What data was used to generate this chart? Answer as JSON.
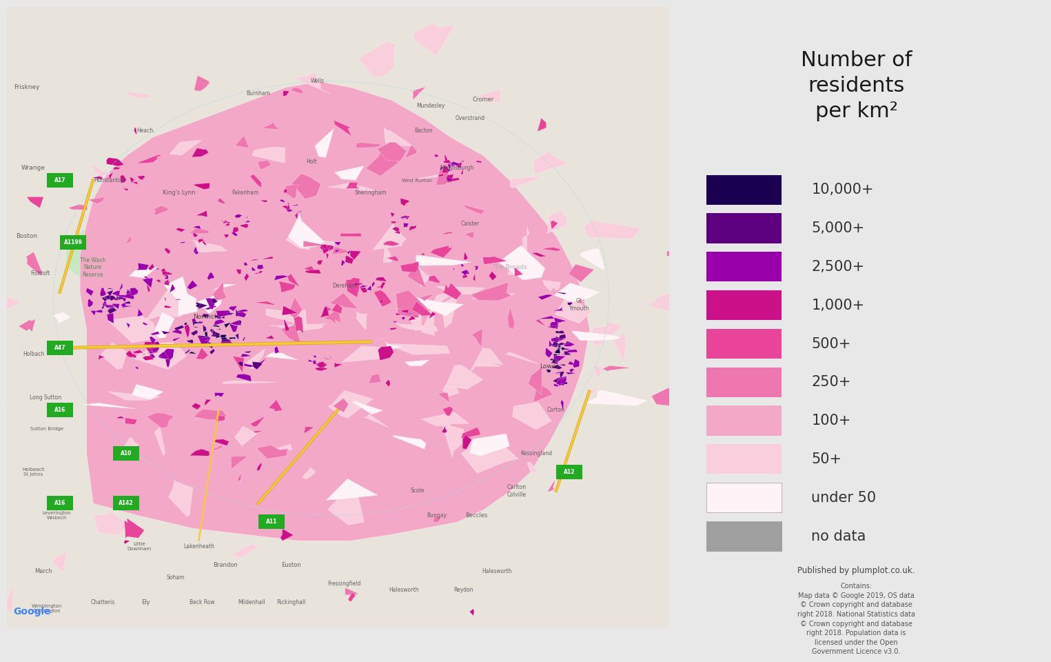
{
  "title": "Number of\nresidents\nper km²",
  "legend_entries": [
    {
      "label": "10,000+",
      "color": "#1a0050"
    },
    {
      "label": "5,000+",
      "color": "#5c0080"
    },
    {
      "label": "2,500+",
      "color": "#9900aa"
    },
    {
      "label": "1,000+",
      "color": "#cc1188"
    },
    {
      "label": "500+",
      "color": "#e84499"
    },
    {
      "label": "250+",
      "color": "#ee77b0"
    },
    {
      "label": "100+",
      "color": "#f4a8c8"
    },
    {
      "label": "50+",
      "color": "#f9cedd"
    },
    {
      "label": "under 50",
      "color": "#fef4f7"
    },
    {
      "label": "no data",
      "color": "#a0a0a0"
    }
  ],
  "sea_color": "#aad3df",
  "land_outside_color": "#e8e4dc",
  "wash_color": "#c8e8c0",
  "road_color": "#f5c842",
  "road_outline_color": "#d4a800",
  "panel_bg": "#e8e8e8",
  "fig_width": 15.05,
  "fig_height": 9.0,
  "published_text": "Published by plumplot.co.uk.",
  "contains_text": "Contains:\nMap data © Google 2019, OS data\n© Crown copyright and database\nright 2018. National Statistics data\n© Crown copyright and database\nright 2018. Population data is\nlicensed under the Open\nGovernment Licence v3.0.",
  "google_text": "Google",
  "legend_title_fontsize": 22,
  "legend_label_fontsize": 15,
  "panel_split": 0.638
}
